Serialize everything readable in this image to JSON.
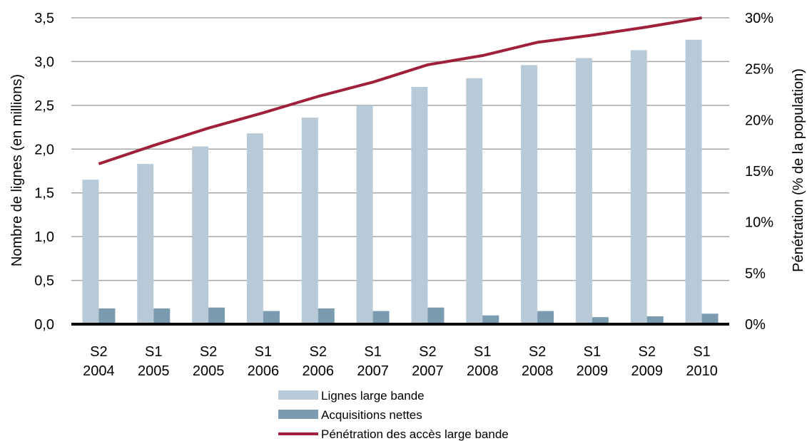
{
  "chart_data": {
    "type": "bar",
    "categories": [
      [
        "S2",
        "2004"
      ],
      [
        "S1",
        "2005"
      ],
      [
        "S2",
        "2005"
      ],
      [
        "S1",
        "2006"
      ],
      [
        "S2",
        "2006"
      ],
      [
        "S1",
        "2007"
      ],
      [
        "S2",
        "2007"
      ],
      [
        "S1",
        "2008"
      ],
      [
        "S2",
        "2008"
      ],
      [
        "S1",
        "2009"
      ],
      [
        "S2",
        "2009"
      ],
      [
        "S1",
        "2010"
      ]
    ],
    "series": [
      {
        "name": "Lignes large bande",
        "kind": "bar",
        "axis": "left",
        "color": "#b8c9d7",
        "values": [
          1.65,
          1.83,
          2.03,
          2.18,
          2.36,
          2.5,
          2.71,
          2.81,
          2.96,
          3.04,
          3.13,
          3.25
        ]
      },
      {
        "name": "Acquisitions nettes",
        "kind": "bar",
        "axis": "left",
        "color": "#7a9bb0",
        "values": [
          0.18,
          0.18,
          0.19,
          0.15,
          0.18,
          0.15,
          0.19,
          0.1,
          0.15,
          0.08,
          0.09,
          0.12
        ]
      },
      {
        "name": "Pénétration des accès large bande",
        "kind": "line",
        "axis": "right",
        "color": "#a0203a",
        "values": [
          15.7,
          17.5,
          19.2,
          20.7,
          22.3,
          23.7,
          25.4,
          26.3,
          27.6,
          28.3,
          29.1,
          30.0
        ]
      }
    ],
    "ylabel": "Nombre de lignes (en millions)",
    "y2label": "Pénétration (% de la population)",
    "ylim": [
      0,
      3.5
    ],
    "yticks": [
      "0,0",
      "0,5",
      "1,0",
      "1,5",
      "2,0",
      "2,5",
      "3,0",
      "3,5"
    ],
    "y2lim": [
      0,
      30
    ],
    "y2ticks": [
      "0%",
      "5%",
      "10%",
      "15%",
      "20%",
      "25%",
      "30%"
    ],
    "grid": true,
    "legend_position": "bottom-center"
  }
}
